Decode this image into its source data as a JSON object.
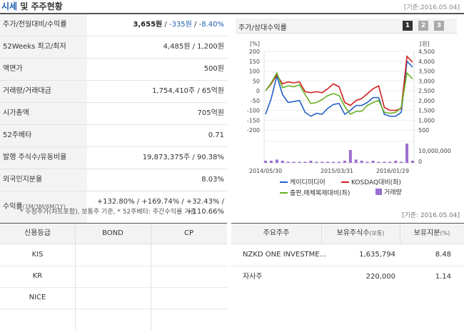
{
  "header": {
    "title_highlight": "시세",
    "title_rest": " 및 주주현황",
    "basis": "[기준:2016.05.04]"
  },
  "summary": [
    {
      "label": "주가/전일대비/수익률",
      "value_main": "3,655원",
      "sep1": " / ",
      "value_change": "-335원",
      "sep2": " / ",
      "value_rate": "-8.40%"
    },
    {
      "label": "52Weeks 최고/최저",
      "value": "4,485원 / 1,200원"
    },
    {
      "label": "액면가",
      "value": "500원"
    },
    {
      "label": "거래량/거래대금",
      "value": "1,754,410주 / 65억원"
    },
    {
      "label": "시가총액",
      "value": "705억원"
    },
    {
      "label": "52주베타",
      "value": "0.71"
    },
    {
      "label": "발행 주식수/유동비율",
      "value": "19,873,375주 / 90.38%"
    },
    {
      "label": "외국인지분율",
      "value": "8.03%"
    },
    {
      "label": "수익률",
      "label_sub": "(1M/3M/6M/1Y)",
      "line1": "+132.80% / +169.74% / +32.43% /",
      "line2": "+110.66%"
    }
  ],
  "note": "* 수정주가(차트포함), 보통주 기준, * 52주베타: 주간수익률 기준",
  "chart_panel": {
    "title": "주가/상대수익률",
    "buttons": [
      "1",
      "2",
      "3"
    ]
  },
  "chart_data": {
    "type": "line",
    "left_unit": "[%]",
    "right_unit": "[원]",
    "left_ticks": [
      "200",
      "150",
      "100",
      "50",
      "0",
      "-50",
      "-100",
      "-150",
      "-200"
    ],
    "right_ticks": [
      "4,500",
      "4,000",
      "3,500",
      "3,000",
      "2,500",
      "2,000",
      "1,500",
      "1,000",
      "500"
    ],
    "volume_tick": "10,000,000",
    "volume_zero": "0",
    "ylim_left": [
      -200,
      200
    ],
    "ylim_right": [
      500,
      4500
    ],
    "x_labels": [
      "2014/05/30",
      "2015/03/31",
      "2016/01/29"
    ],
    "series": [
      {
        "name": "케이디미디어",
        "color": "#2060c8",
        "axis": "left",
        "values": [
          -120,
          -40,
          75,
          -20,
          -60,
          -55,
          -50,
          -110,
          -130,
          -115,
          -120,
          -90,
          -70,
          -65,
          -120,
          -100,
          -75,
          -75,
          -60,
          -35,
          -35,
          -120,
          -130,
          -130,
          -110,
          150,
          120
        ]
      },
      {
        "name": "KOSDAQ대비(좌)",
        "color": "#d02020",
        "axis": "left",
        "values": [
          0,
          35,
          80,
          35,
          45,
          40,
          45,
          -5,
          -10,
          -5,
          -10,
          10,
          35,
          20,
          -60,
          -75,
          -50,
          -40,
          -15,
          10,
          25,
          -85,
          -100,
          -100,
          -90,
          175,
          145
        ]
      },
      {
        "name": "출판,매체복제대비(좌)",
        "color": "#66b022",
        "axis": "left",
        "values": [
          0,
          40,
          90,
          15,
          25,
          20,
          30,
          -20,
          -65,
          -60,
          -45,
          -25,
          -15,
          -25,
          -80,
          -120,
          -105,
          -105,
          -75,
          -60,
          -50,
          -110,
          -115,
          -110,
          -85,
          90,
          60
        ]
      },
      {
        "name": "거래량",
        "color": "#9b6fd0",
        "axis": "volume",
        "values": [
          2,
          2,
          3,
          2,
          1,
          1,
          1,
          1,
          2,
          1,
          1,
          1,
          1,
          1,
          2,
          12,
          3,
          2,
          1,
          2,
          1,
          1,
          1,
          2,
          1,
          18,
          2
        ]
      }
    ]
  },
  "credit": {
    "headers": [
      "신용등급",
      "BOND",
      "CP"
    ],
    "rows": [
      "KIS",
      "KR",
      "NICE"
    ]
  },
  "holders": {
    "basis": "[기준: 2016.05.04]",
    "headers": {
      "name": "주요주주",
      "shares": "보유주식수",
      "shares_unit": "(보통)",
      "ratio": "보유지분",
      "ratio_unit": "(%)"
    },
    "rows": [
      {
        "name": "NZKD ONE INVESTME...",
        "shares": "1,635,794",
        "ratio": "8.48"
      },
      {
        "name": "자사주",
        "shares": "220,000",
        "ratio": "1.14"
      }
    ]
  }
}
